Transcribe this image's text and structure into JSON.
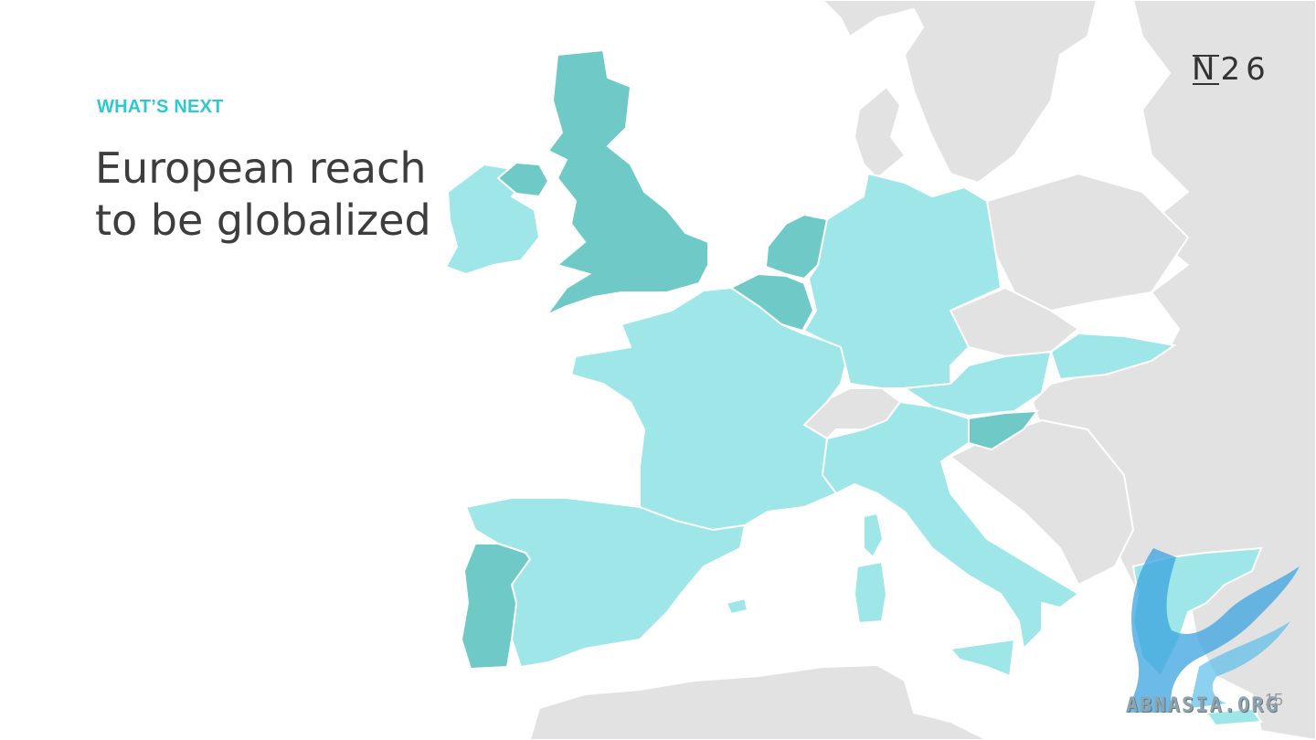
{
  "slide": {
    "eyebrow": "WHAT’S NEXT",
    "headline_line1": "European reach",
    "headline_line2": "to be globalized",
    "page_number": "15"
  },
  "brand": {
    "logo_letter": "N",
    "logo_digits": "26"
  },
  "watermark": {
    "text": "ABNASIA.ORG"
  },
  "map_data": {
    "highlight_colors": {
      "current_markets": "#6fc9c6",
      "expansion_markets": "#9ee6e8",
      "other_countries": "#e2e2e2"
    },
    "current_markets": [
      "United Kingdom",
      "Netherlands",
      "Belgium",
      "Portugal",
      "Slovenia"
    ],
    "expansion_markets": [
      "Ireland",
      "France",
      "Germany",
      "Spain",
      "Italy",
      "Austria",
      "Slovakia",
      "Greece"
    ]
  }
}
